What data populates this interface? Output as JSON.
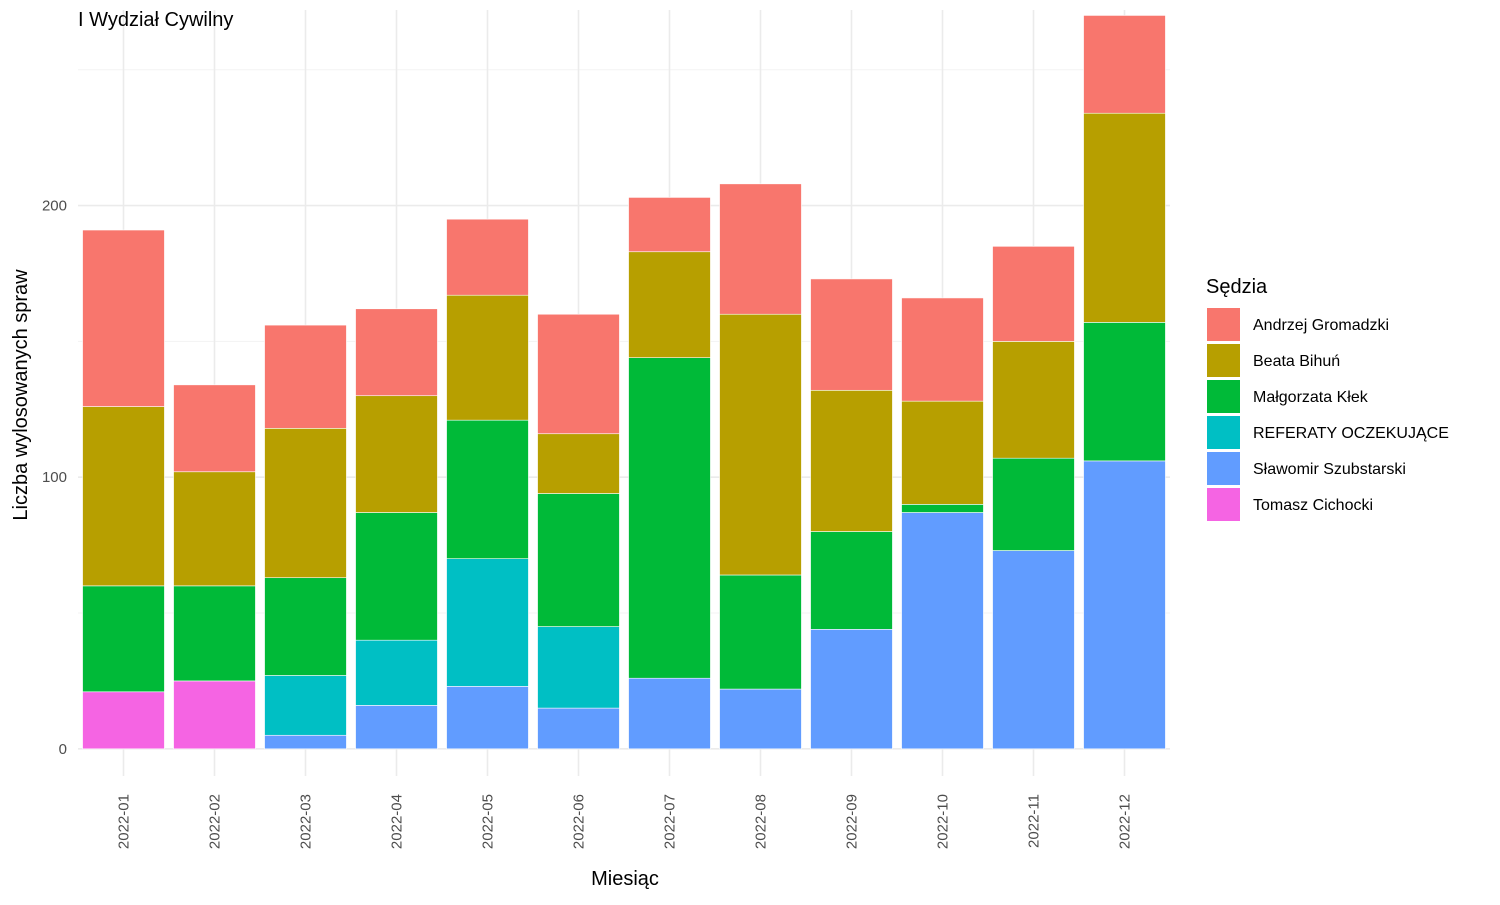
{
  "chart_data": {
    "type": "bar",
    "stacked": true,
    "title": "I Wydział Cywilny",
    "xlabel": "Miesiąc",
    "ylabel": "Liczba wylosowanych spraw",
    "ylim": [
      -10,
      272
    ],
    "yticks": [
      0,
      100,
      200
    ],
    "grid": true,
    "legend_position": "right",
    "legend_title": "Sędzia",
    "categories": [
      "2022-01",
      "2022-02",
      "2022-03",
      "2022-04",
      "2022-05",
      "2022-06",
      "2022-07",
      "2022-08",
      "2022-09",
      "2022-10",
      "2022-11",
      "2022-12"
    ],
    "stack_order_bottom_to_top": [
      "Tomasz Cichocki",
      "Sławomir Szubstarski",
      "REFERATY OCZEKUJĄCE",
      "Małgorzata Kłek",
      "Beata Bihuń",
      "Andrzej Gromadzki"
    ],
    "series": [
      {
        "name": "Andrzej Gromadzki",
        "color": "#F8766D",
        "values": [
          65,
          32,
          38,
          32,
          28,
          44,
          20,
          48,
          41,
          38,
          35,
          36
        ]
      },
      {
        "name": "Beata Bihuń",
        "color": "#B79F00",
        "values": [
          66,
          42,
          55,
          43,
          46,
          22,
          39,
          96,
          52,
          38,
          43,
          77
        ]
      },
      {
        "name": "Małgorzata Kłek",
        "color": "#00BA38",
        "values": [
          39,
          35,
          36,
          47,
          51,
          49,
          118,
          42,
          36,
          3,
          34,
          51
        ]
      },
      {
        "name": "REFERATY OCZEKUJĄCE",
        "color": "#00BFC4",
        "values": [
          0,
          0,
          22,
          24,
          47,
          30,
          0,
          0,
          0,
          0,
          0,
          0
        ]
      },
      {
        "name": "Sławomir Szubstarski",
        "color": "#619CFF",
        "values": [
          0,
          0,
          5,
          16,
          23,
          15,
          26,
          22,
          44,
          87,
          73,
          106
        ]
      },
      {
        "name": "Tomasz Cichocki",
        "color": "#F564E3",
        "values": [
          21,
          25,
          0,
          0,
          0,
          0,
          0,
          0,
          0,
          0,
          0,
          0
        ]
      }
    ]
  }
}
